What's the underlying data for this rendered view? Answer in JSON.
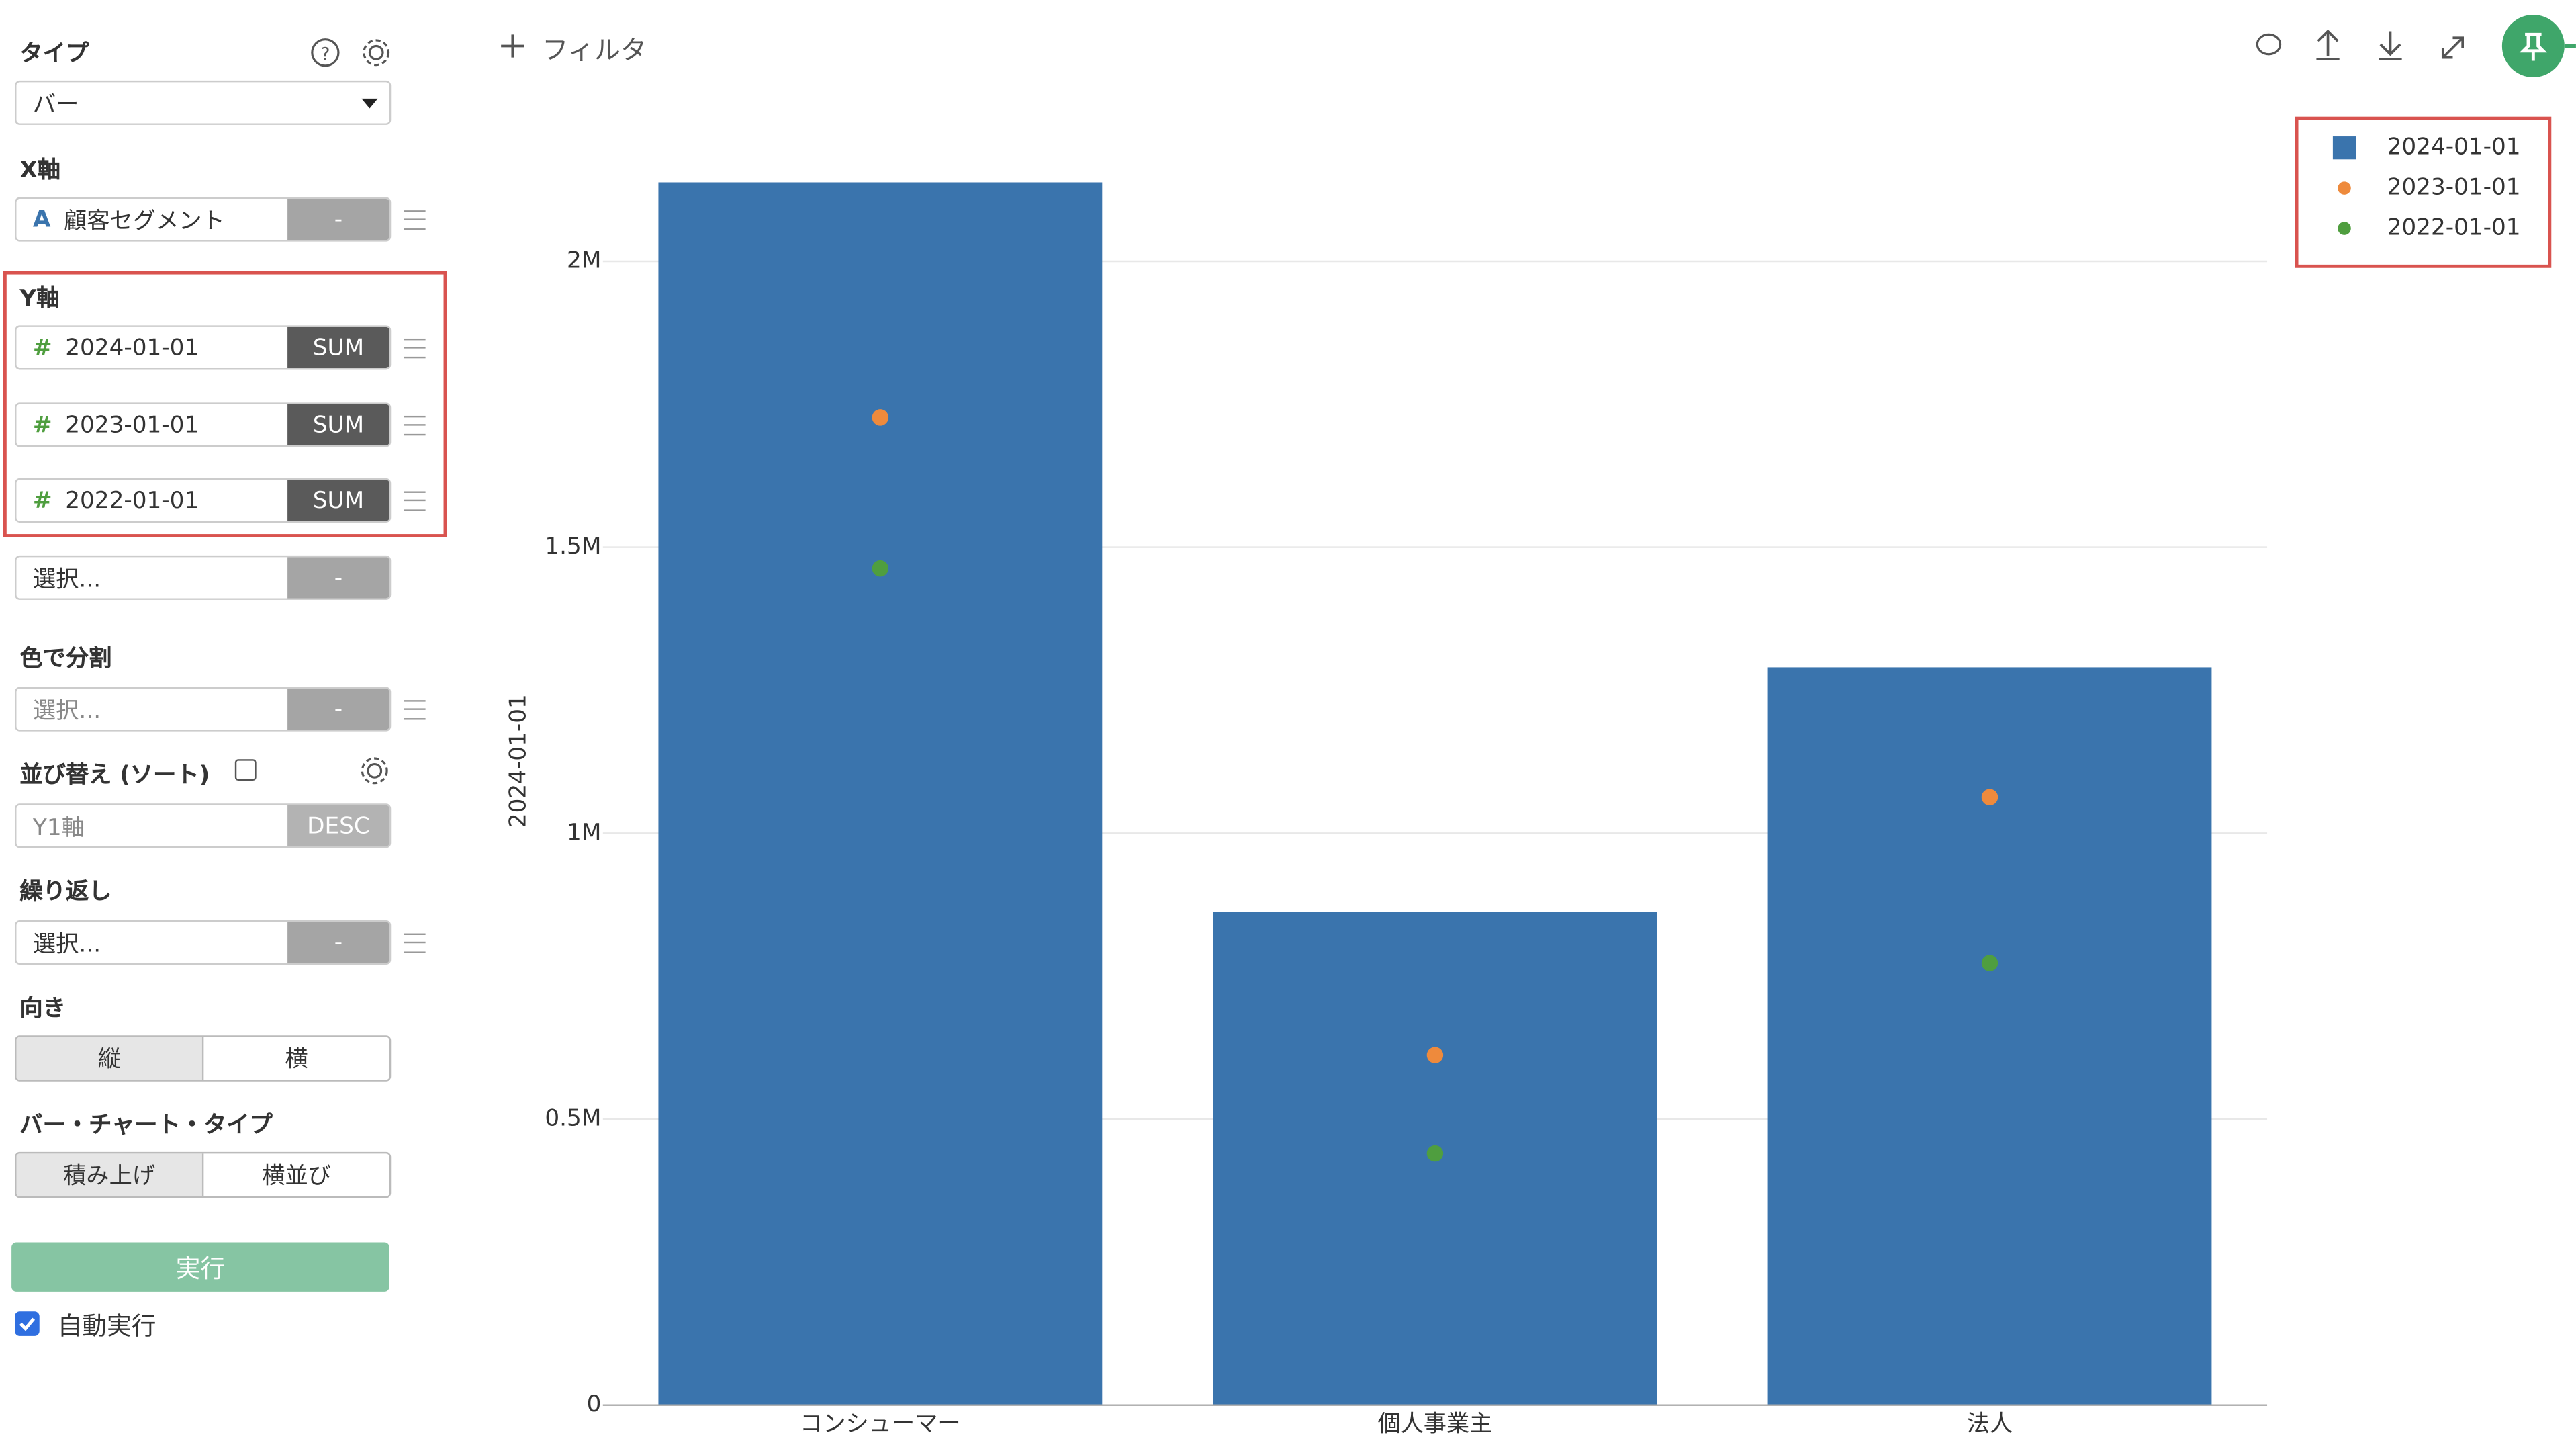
{
  "sidebar": {
    "type_label": "タイプ",
    "type_value": "バー",
    "x_axis_label": "X軸",
    "x_field": "顧客セグメント",
    "x_agg": "-",
    "y_axis_label": "Y軸",
    "y_fields": [
      {
        "name": "2024-01-01",
        "agg": "SUM"
      },
      {
        "name": "2023-01-01",
        "agg": "SUM"
      },
      {
        "name": "2022-01-01",
        "agg": "SUM"
      }
    ],
    "y_add_placeholder": "選択...",
    "y_add_agg": "-",
    "color_label": "色で分割",
    "color_placeholder": "選択...",
    "color_agg": "-",
    "sort_label": "並び替え (ソート)",
    "sort_field": "Y1軸",
    "sort_order": "DESC",
    "repeat_label": "繰り返し",
    "repeat_placeholder": "選択...",
    "repeat_agg": "-",
    "orientation_label": "向き",
    "orientation_options": [
      "縦",
      "横"
    ],
    "bar_type_label": "バー・チャート・タイプ",
    "bar_type_options": [
      "積み上げ",
      "横並び"
    ],
    "run_button": "実行",
    "auto_run": "自動実行"
  },
  "toolbar": {
    "filter": "フィルタ"
  },
  "chart_data": {
    "type": "bar",
    "y_label": "2024-01-01",
    "categories": [
      "コンシューマー",
      "個人事業主",
      "法人"
    ],
    "series": [
      {
        "name": "2024-01-01",
        "type": "bar",
        "color": "#3a74ad",
        "values": [
          2138000,
          862000,
          1290000
        ]
      },
      {
        "name": "2023-01-01",
        "type": "scatter",
        "color": "#ee8a3c",
        "values": [
          1727000,
          612000,
          1063000
        ]
      },
      {
        "name": "2022-01-01",
        "type": "scatter",
        "color": "#4f9e3f",
        "values": [
          1463000,
          440000,
          773000
        ]
      }
    ],
    "ylim": [
      0,
      2250000
    ],
    "yticks": [
      0,
      {
        "value": 500000,
        "label": "0.5M"
      },
      {
        "value": 1000000,
        "label": "1M"
      },
      {
        "value": 1500000,
        "label": "1.5M"
      },
      {
        "value": 2000000,
        "label": "2M"
      }
    ],
    "grid": true,
    "legend": "top-right"
  }
}
